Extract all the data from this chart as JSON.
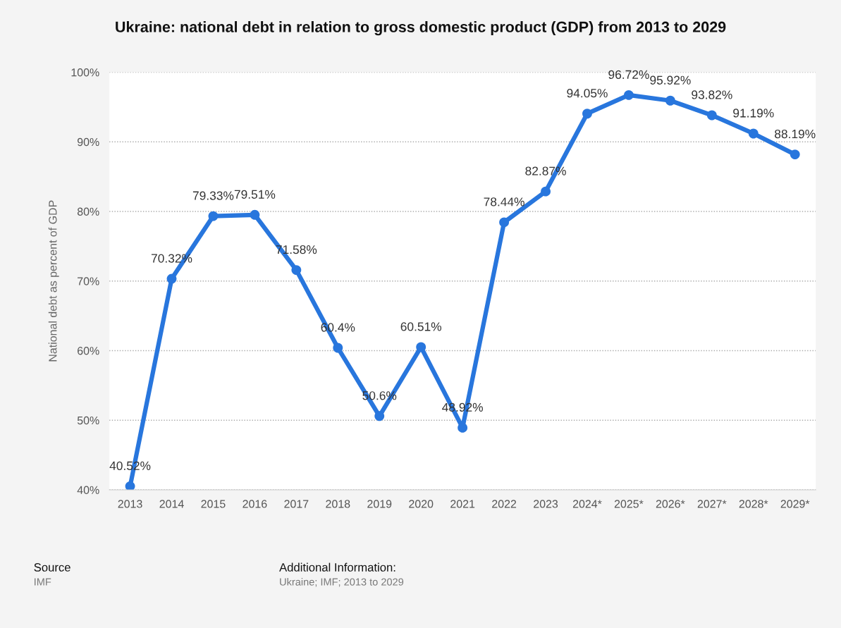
{
  "chart_data": {
    "type": "line",
    "title": "Ukraine: national debt in relation to gross domestic product (GDP) from 2013 to 2029",
    "ylabel": "National debt as percent of GDP",
    "categories": [
      "2013",
      "2014",
      "2015",
      "2016",
      "2017",
      "2018",
      "2019",
      "2020",
      "2021",
      "2022",
      "2023",
      "2024*",
      "2025*",
      "2026*",
      "2027*",
      "2028*",
      "2029*"
    ],
    "series": [
      {
        "color": "#2876dd",
        "values": [
          40.52,
          70.32,
          79.33,
          79.51,
          71.58,
          60.4,
          50.6,
          60.51,
          48.92,
          78.44,
          82.87,
          94.05,
          96.72,
          95.92,
          93.82,
          91.19,
          88.19
        ],
        "value_labels": [
          "40.52%",
          "70.32%",
          "79.33%",
          "79.51%",
          "71.58%",
          "60.4%",
          "50.6%",
          "60.51%",
          "48.92%",
          "78.44%",
          "82.87%",
          "94.05%",
          "96.72%",
          "95.92%",
          "93.82%",
          "91.19%",
          "88.19%"
        ]
      }
    ],
    "ylim": [
      40,
      100
    ],
    "yticks": [
      {
        "value": 40,
        "label": "40%"
      },
      {
        "value": 50,
        "label": "50%"
      },
      {
        "value": 60,
        "label": "60%"
      },
      {
        "value": 70,
        "label": "70%"
      },
      {
        "value": 80,
        "label": "80%"
      },
      {
        "value": 90,
        "label": "90%"
      },
      {
        "value": 100,
        "label": "100%"
      }
    ],
    "grid": "y",
    "marker": "circle",
    "line_style": "solid",
    "legend": false,
    "annotations": [
      "Source",
      "IMF",
      "Additional Information:",
      "Ukraine; IMF; 2013 to 2029"
    ]
  }
}
